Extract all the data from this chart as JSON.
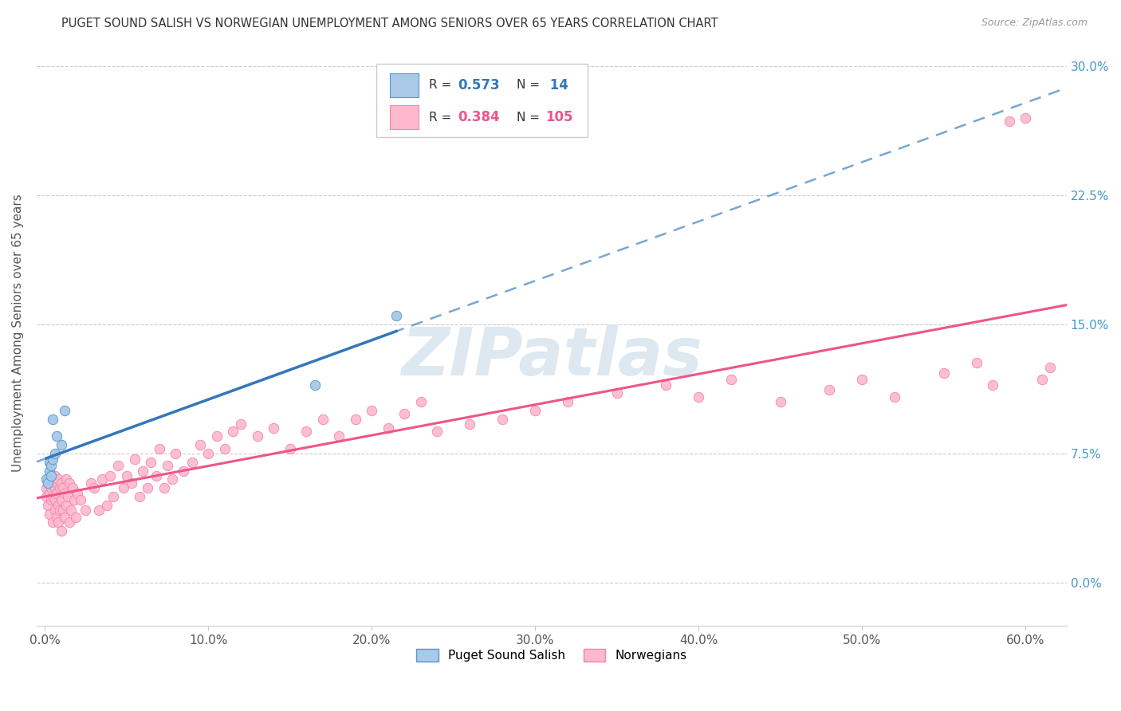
{
  "title": "PUGET SOUND SALISH VS NORWEGIAN UNEMPLOYMENT AMONG SENIORS OVER 65 YEARS CORRELATION CHART",
  "source": "Source: ZipAtlas.com",
  "ylabel": "Unemployment Among Seniors over 65 years",
  "xlabel_ticks": [
    "0.0%",
    "10.0%",
    "20.0%",
    "30.0%",
    "40.0%",
    "50.0%",
    "60.0%"
  ],
  "xlabel_vals": [
    0.0,
    0.1,
    0.2,
    0.3,
    0.4,
    0.5,
    0.6
  ],
  "ylabel_ticks": [
    "0.0%",
    "7.5%",
    "15.0%",
    "22.5%",
    "30.0%"
  ],
  "ylabel_vals": [
    0.0,
    0.075,
    0.15,
    0.225,
    0.3
  ],
  "xlim": [
    -0.005,
    0.625
  ],
  "ylim": [
    -0.025,
    0.315
  ],
  "R_salish": 0.573,
  "N_salish": 14,
  "R_norwegian": 0.384,
  "N_norwegian": 105,
  "salish_color": "#aac8e8",
  "salish_edge": "#5599cc",
  "norwegian_color": "#ffb8cc",
  "norwegian_edge": "#ee88aa",
  "salish_line_color": "#3377bb",
  "norwegian_line_color": "#ee5588",
  "watermark_color": "#dde8f0",
  "salish_x": [
    0.001,
    0.002,
    0.003,
    0.003,
    0.004,
    0.004,
    0.005,
    0.005,
    0.006,
    0.007,
    0.01,
    0.012,
    0.165,
    0.215
  ],
  "salish_y": [
    0.06,
    0.058,
    0.065,
    0.07,
    0.062,
    0.068,
    0.072,
    0.095,
    0.075,
    0.085,
    0.08,
    0.1,
    0.115,
    0.155
  ],
  "norwegian_x": [
    0.001,
    0.001,
    0.002,
    0.002,
    0.003,
    0.003,
    0.003,
    0.004,
    0.004,
    0.004,
    0.005,
    0.005,
    0.005,
    0.006,
    0.006,
    0.006,
    0.006,
    0.007,
    0.007,
    0.007,
    0.008,
    0.008,
    0.008,
    0.009,
    0.009,
    0.01,
    0.01,
    0.01,
    0.011,
    0.011,
    0.012,
    0.012,
    0.013,
    0.013,
    0.014,
    0.015,
    0.015,
    0.016,
    0.017,
    0.018,
    0.019,
    0.02,
    0.022,
    0.025,
    0.028,
    0.03,
    0.033,
    0.035,
    0.038,
    0.04,
    0.042,
    0.045,
    0.048,
    0.05,
    0.053,
    0.055,
    0.058,
    0.06,
    0.063,
    0.065,
    0.068,
    0.07,
    0.073,
    0.075,
    0.078,
    0.08,
    0.085,
    0.09,
    0.095,
    0.1,
    0.105,
    0.11,
    0.115,
    0.12,
    0.13,
    0.14,
    0.15,
    0.16,
    0.17,
    0.18,
    0.19,
    0.2,
    0.21,
    0.22,
    0.23,
    0.24,
    0.26,
    0.28,
    0.3,
    0.32,
    0.35,
    0.38,
    0.4,
    0.42,
    0.45,
    0.48,
    0.5,
    0.52,
    0.55,
    0.57,
    0.58,
    0.59,
    0.6,
    0.61,
    0.615
  ],
  "norwegian_y": [
    0.05,
    0.055,
    0.045,
    0.06,
    0.04,
    0.052,
    0.058,
    0.048,
    0.055,
    0.062,
    0.035,
    0.05,
    0.058,
    0.042,
    0.055,
    0.062,
    0.048,
    0.038,
    0.052,
    0.058,
    0.045,
    0.06,
    0.035,
    0.055,
    0.042,
    0.03,
    0.048,
    0.058,
    0.042,
    0.055,
    0.038,
    0.052,
    0.045,
    0.06,
    0.05,
    0.035,
    0.058,
    0.042,
    0.055,
    0.048,
    0.038,
    0.052,
    0.048,
    0.042,
    0.058,
    0.055,
    0.042,
    0.06,
    0.045,
    0.062,
    0.05,
    0.068,
    0.055,
    0.062,
    0.058,
    0.072,
    0.05,
    0.065,
    0.055,
    0.07,
    0.062,
    0.078,
    0.055,
    0.068,
    0.06,
    0.075,
    0.065,
    0.07,
    0.08,
    0.075,
    0.085,
    0.078,
    0.088,
    0.092,
    0.085,
    0.09,
    0.078,
    0.088,
    0.095,
    0.085,
    0.095,
    0.1,
    0.09,
    0.098,
    0.105,
    0.088,
    0.092,
    0.095,
    0.1,
    0.105,
    0.11,
    0.115,
    0.108,
    0.118,
    0.105,
    0.112,
    0.118,
    0.108,
    0.122,
    0.128,
    0.115,
    0.268,
    0.27,
    0.118,
    0.125
  ]
}
